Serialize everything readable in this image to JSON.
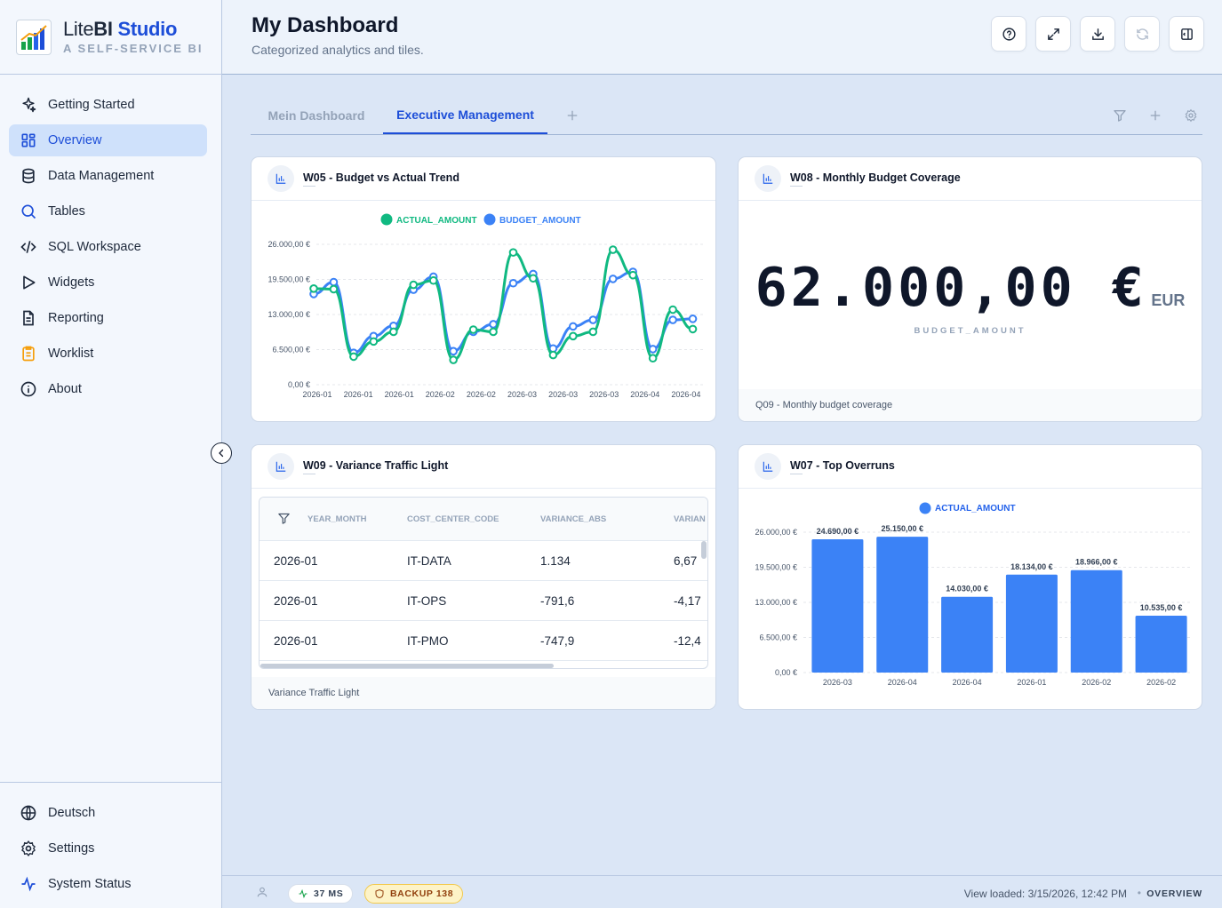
{
  "app": {
    "name_plain": "Lite",
    "name_bold": "BI",
    "name_accent": "Studio",
    "subtitle": "A SELF-SERVICE BI"
  },
  "sidebar": {
    "items": [
      {
        "label": "Getting Started",
        "icon": "sparkles-icon"
      },
      {
        "label": "Overview",
        "icon": "layout-grid-icon",
        "active": true
      },
      {
        "label": "Data Management",
        "icon": "database-icon"
      },
      {
        "label": "Tables",
        "icon": "search-icon"
      },
      {
        "label": "SQL Workspace",
        "icon": "code-icon"
      },
      {
        "label": "Widgets",
        "icon": "play-icon"
      },
      {
        "label": "Reporting",
        "icon": "file-text-icon"
      },
      {
        "label": "Worklist",
        "icon": "clipboard-list-icon"
      },
      {
        "label": "About",
        "icon": "info-icon"
      }
    ],
    "bottom": [
      {
        "label": "Deutsch",
        "icon": "globe-icon"
      },
      {
        "label": "Settings",
        "icon": "gear-icon"
      },
      {
        "label": "System Status",
        "icon": "activity-icon"
      }
    ]
  },
  "header": {
    "title": "My Dashboard",
    "subtitle": "Categorized analytics and tiles."
  },
  "tabs": [
    {
      "label": "Mein Dashboard",
      "active": false
    },
    {
      "label": "Executive Management",
      "active": true
    }
  ],
  "cards": {
    "w05": {
      "title": "W05 - Budget vs Actual Trend",
      "chart_data": {
        "type": "line",
        "x": [
          "2026-01",
          "2026-01",
          "2026-01",
          "2026-01",
          "2026-01",
          "2026-01",
          "2026-02",
          "2026-02",
          "2026-02",
          "2026-02",
          "2026-02",
          "2026-02",
          "2026-03",
          "2026-03",
          "2026-03",
          "2026-03",
          "2026-03",
          "2026-03",
          "2026-04",
          "2026-04",
          "2026-04",
          "2026-04",
          "2026-04",
          "2026-04"
        ],
        "x_tick_labels": [
          "2026-01",
          "2026-01",
          "2026-01",
          "2026-02",
          "2026-02",
          "2026-03",
          "2026-03",
          "2026-03",
          "2026-04",
          "2026-04"
        ],
        "series": [
          {
            "name": "ACTUAL_AMOUNT",
            "color": "#10b981",
            "values": [
              17800,
              17700,
              5200,
              8000,
              9800,
              18500,
              19300,
              4600,
              10200,
              9800,
              24500,
              19700,
              5500,
              9000,
              9800,
              25000,
              20300,
              4900,
              13900,
              10300,
              null,
              null,
              null,
              null
            ]
          },
          {
            "name": "BUDGET_AMOUNT",
            "color": "#3b82f6",
            "values": [
              16800,
              19000,
              5900,
              9000,
              10900,
              17600,
              20000,
              6200,
              9800,
              11200,
              18800,
              20500,
              6700,
              10800,
              12000,
              19600,
              20900,
              6600,
              12000,
              12200,
              null,
              null,
              null,
              null
            ]
          }
        ],
        "y_ticks": [
          "0,00 €",
          "6.500,00 €",
          "13.000,00 €",
          "19.500,00 €",
          "26.000,00 €"
        ],
        "ylim": [
          0,
          26000
        ],
        "legend": "top-center",
        "grid": true
      }
    },
    "w08": {
      "title": "W08 - Monthly Budget Coverage",
      "value": "62.000,00 €",
      "unit": "EUR",
      "label": "BUDGET_AMOUNT",
      "footer": "Q09 - Monthly budget coverage"
    },
    "w09": {
      "title": "W09 - Variance Traffic Light",
      "columns": [
        "YEAR_MONTH",
        "COST_CENTER_CODE",
        "VARIANCE_ABS",
        "VARIAN"
      ],
      "rows": [
        [
          "2026-01",
          "IT-DATA",
          "1.134",
          "6,67"
        ],
        [
          "2026-01",
          "IT-OPS",
          "-791,6",
          "-4,17"
        ],
        [
          "2026-01",
          "IT-PMO",
          "-747,9",
          "-12,4"
        ]
      ],
      "footer": "Variance Traffic Light"
    },
    "w07": {
      "title": "W07 - Top Overruns",
      "chart_data": {
        "type": "bar",
        "categories": [
          "2026-03",
          "2026-04",
          "2026-04",
          "2026-01",
          "2026-02",
          "2026-02"
        ],
        "series": [
          {
            "name": "ACTUAL_AMOUNT",
            "color": "#3b82f6",
            "values": [
              24690,
              25150,
              14030,
              18134,
              18966,
              10535
            ]
          }
        ],
        "data_labels": [
          "24.690,00 €",
          "25.150,00 €",
          "14.030,00 €",
          "18.134,00 €",
          "18.966,00 €",
          "10.535,00 €"
        ],
        "y_ticks": [
          "0,00 €",
          "6.500,00 €",
          "13.000,00 €",
          "19.500,00 €",
          "26.000,00 €"
        ],
        "ylim": [
          0,
          26000
        ],
        "legend": "top-center",
        "grid": true
      }
    }
  },
  "statusbar": {
    "latency": "37 MS",
    "backup": "BACKUP 138",
    "loaded": "View loaded: 3/15/2026, 12:42 PM",
    "view": "OVERVIEW"
  },
  "colors": {
    "accent": "#1d4ed8",
    "actual": "#10b981",
    "budget": "#3b82f6"
  }
}
